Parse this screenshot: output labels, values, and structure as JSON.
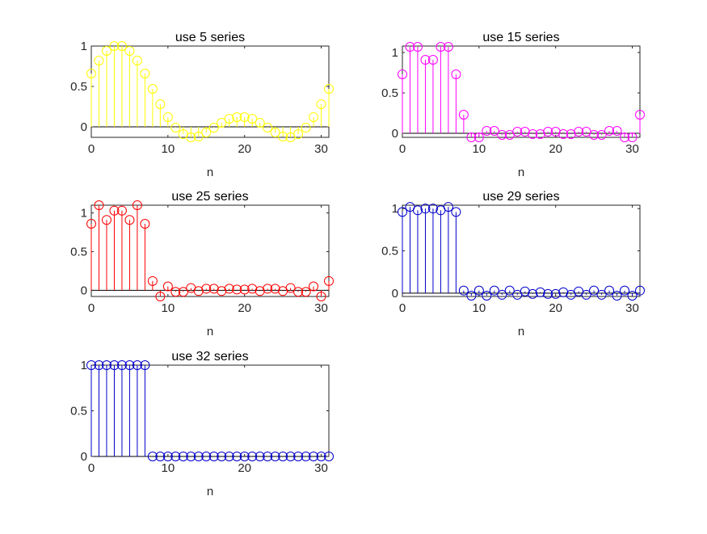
{
  "chart_data": [
    {
      "type": "stem",
      "title": "use 5 series",
      "xlabel": "n",
      "ylabel": "",
      "color": "#ffff00",
      "xlim": [
        0,
        31
      ],
      "ylim": [
        -0.13,
        1.0
      ],
      "xticks": [
        "0",
        "10",
        "20",
        "30"
      ],
      "yticks": [
        "0",
        "0.5",
        "1"
      ],
      "x": [
        0,
        1,
        2,
        3,
        4,
        5,
        6,
        7,
        8,
        9,
        10,
        11,
        12,
        13,
        14,
        15,
        16,
        17,
        18,
        19,
        20,
        21,
        22,
        23,
        24,
        25,
        26,
        27,
        28,
        29,
        30,
        31
      ],
      "values": [
        0.66,
        0.82,
        0.94,
        1.0,
        1.0,
        0.94,
        0.82,
        0.66,
        0.47,
        0.28,
        0.12,
        -0.01,
        -0.09,
        -0.13,
        -0.12,
        -0.07,
        -0.01,
        0.05,
        0.1,
        0.12,
        0.12,
        0.1,
        0.05,
        -0.01,
        -0.07,
        -0.12,
        -0.13,
        -0.09,
        -0.01,
        0.12,
        0.28,
        0.47
      ]
    },
    {
      "type": "stem",
      "title": "use 15 series",
      "xlabel": "n",
      "ylabel": "",
      "color": "#ff00ff",
      "xlim": [
        0,
        31
      ],
      "ylim": [
        -0.05,
        1.08
      ],
      "xticks": [
        "0",
        "10",
        "20",
        "30"
      ],
      "yticks": [
        "0",
        "0.5",
        "1"
      ],
      "x": [
        0,
        1,
        2,
        3,
        4,
        5,
        6,
        7,
        8,
        9,
        10,
        11,
        12,
        13,
        14,
        15,
        16,
        17,
        18,
        19,
        20,
        21,
        22,
        23,
        24,
        25,
        26,
        27,
        28,
        29,
        30,
        31
      ],
      "values": [
        0.73,
        1.07,
        1.07,
        0.91,
        0.91,
        1.07,
        1.07,
        0.73,
        0.23,
        -0.05,
        -0.05,
        0.03,
        0.03,
        -0.02,
        -0.02,
        0.02,
        0.02,
        -0.01,
        -0.01,
        0.02,
        0.02,
        -0.01,
        -0.01,
        0.02,
        0.02,
        -0.02,
        -0.02,
        0.03,
        0.03,
        -0.05,
        -0.05,
        0.23
      ]
    },
    {
      "type": "stem",
      "title": "use 25 series",
      "xlabel": "n",
      "ylabel": "",
      "color": "#ff0000",
      "xlim": [
        0,
        31
      ],
      "ylim": [
        -0.08,
        1.1
      ],
      "xticks": [
        "0",
        "10",
        "20",
        "30"
      ],
      "yticks": [
        "0",
        "0.5",
        "1"
      ],
      "x": [
        0,
        1,
        2,
        3,
        4,
        5,
        6,
        7,
        8,
        9,
        10,
        11,
        12,
        13,
        14,
        15,
        16,
        17,
        18,
        19,
        20,
        21,
        22,
        23,
        24,
        25,
        26,
        27,
        28,
        29,
        30,
        31
      ],
      "values": [
        0.86,
        1.1,
        0.91,
        1.03,
        1.03,
        0.91,
        1.1,
        0.86,
        0.12,
        -0.08,
        0.05,
        -0.02,
        -0.02,
        0.03,
        -0.01,
        0.02,
        0.02,
        -0.01,
        0.02,
        0.01,
        0.01,
        0.02,
        -0.01,
        0.02,
        0.02,
        -0.01,
        0.03,
        -0.02,
        -0.02,
        0.05,
        -0.08,
        0.12
      ]
    },
    {
      "type": "stem",
      "title": "use 29 series",
      "xlabel": "n",
      "ylabel": "",
      "color": "#0000cc",
      "xlim": [
        0,
        31
      ],
      "ylim": [
        -0.04,
        1.04
      ],
      "xticks": [
        "0",
        "10",
        "20",
        "30"
      ],
      "yticks": [
        "0",
        "0.5",
        "1"
      ],
      "x": [
        0,
        1,
        2,
        3,
        4,
        5,
        6,
        7,
        8,
        9,
        10,
        11,
        12,
        13,
        14,
        15,
        16,
        17,
        18,
        19,
        20,
        21,
        22,
        23,
        24,
        25,
        26,
        27,
        28,
        29,
        30,
        31
      ],
      "values": [
        0.96,
        1.02,
        0.98,
        1.0,
        1.0,
        0.98,
        1.02,
        0.96,
        0.03,
        -0.03,
        0.03,
        -0.03,
        0.03,
        -0.02,
        0.03,
        -0.02,
        0.02,
        -0.01,
        0.01,
        -0.01,
        -0.01,
        0.01,
        -0.02,
        0.02,
        -0.02,
        0.03,
        -0.02,
        0.03,
        -0.03,
        0.03,
        -0.03,
        0.03
      ]
    },
    {
      "type": "stem",
      "title": "use 32 series",
      "xlabel": "n",
      "ylabel": "",
      "color": "#0000cc",
      "xlim": [
        0,
        31
      ],
      "ylim": [
        0,
        1.0
      ],
      "xticks": [
        "0",
        "10",
        "20",
        "30"
      ],
      "yticks": [
        "0",
        "0.5",
        "1"
      ],
      "x": [
        0,
        1,
        2,
        3,
        4,
        5,
        6,
        7,
        8,
        9,
        10,
        11,
        12,
        13,
        14,
        15,
        16,
        17,
        18,
        19,
        20,
        21,
        22,
        23,
        24,
        25,
        26,
        27,
        28,
        29,
        30,
        31
      ],
      "values": [
        1,
        1,
        1,
        1,
        1,
        1,
        1,
        1,
        0,
        0,
        0,
        0,
        0,
        0,
        0,
        0,
        0,
        0,
        0,
        0,
        0,
        0,
        0,
        0,
        0,
        0,
        0,
        0,
        0,
        0,
        0,
        0
      ]
    }
  ]
}
